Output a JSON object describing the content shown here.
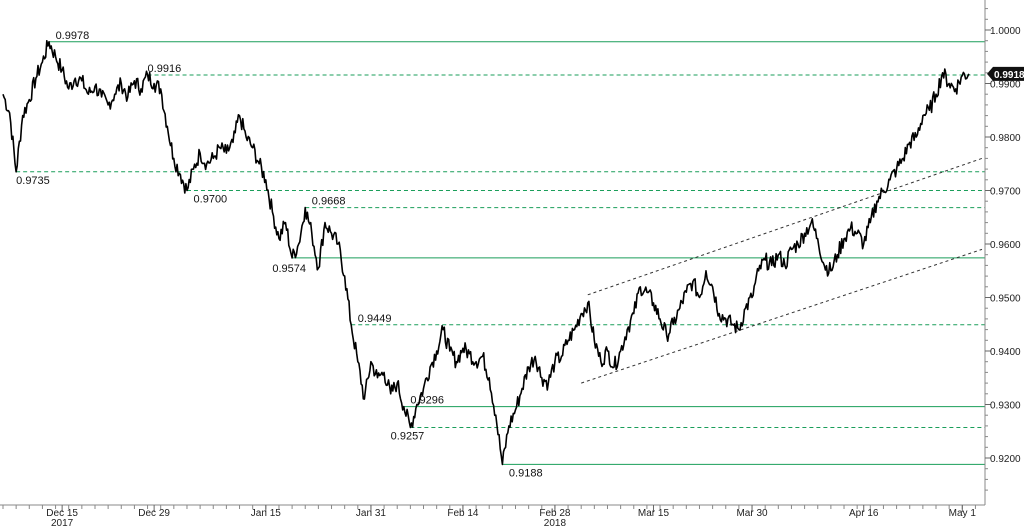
{
  "chart_data": {
    "type": "line",
    "title": "",
    "xlabel": "",
    "ylabel": "",
    "ylim": [
      0.914,
      1.007
    ],
    "y_ticks": [
      "1.0000",
      "0.9900",
      "0.9800",
      "0.9700",
      "0.9600",
      "0.9500",
      "0.9400",
      "0.9300",
      "0.9200"
    ],
    "y_tick_values": [
      1.0,
      0.99,
      0.98,
      0.97,
      0.96,
      0.95,
      0.94,
      0.93,
      0.92
    ],
    "x_tick_labels": [
      "Dec 15",
      "Dec 29",
      "Jan 15",
      "Jan 31",
      "Feb 14",
      "Feb 28",
      "Mar 15",
      "Mar 30",
      "Apr 16",
      "May 1"
    ],
    "x_tick_days": [
      9,
      23,
      40,
      56,
      70,
      84,
      99,
      114,
      131,
      146
    ],
    "year_labels": [
      {
        "label": "2017",
        "day": 9
      },
      {
        "label": "2018",
        "day": 84
      }
    ],
    "x_range_days": [
      0,
      149
    ],
    "last_value": "0.9918",
    "last_value_y": 0.9918,
    "line_color": "#000000",
    "level_line_color": "#1a9e5a",
    "series": [
      {
        "points": [
          [
            0,
            0.988
          ],
          [
            1,
            0.9845
          ],
          [
            2,
            0.9735
          ],
          [
            3,
            0.984
          ],
          [
            4,
            0.987
          ],
          [
            5,
            0.991
          ],
          [
            6,
            0.994
          ],
          [
            7,
            0.9978
          ],
          [
            8,
            0.995
          ],
          [
            9,
            0.9925
          ],
          [
            10,
            0.989
          ],
          [
            11,
            0.991
          ],
          [
            12,
            0.9905
          ],
          [
            13,
            0.988
          ],
          [
            14,
            0.9895
          ],
          [
            15,
            0.9875
          ],
          [
            16,
            0.986
          ],
          [
            17,
            0.988
          ],
          [
            18,
            0.99
          ],
          [
            19,
            0.9875
          ],
          [
            20,
            0.9905
          ],
          [
            21,
            0.989
          ],
          [
            22,
            0.9916
          ],
          [
            23,
            0.99
          ],
          [
            24,
            0.989
          ],
          [
            25,
            0.982
          ],
          [
            26,
            0.976
          ],
          [
            27,
            0.973
          ],
          [
            28,
            0.97
          ],
          [
            29,
            0.974
          ],
          [
            30,
            0.977
          ],
          [
            31,
            0.975
          ],
          [
            32,
            0.976
          ],
          [
            33,
            0.978
          ],
          [
            34,
            0.977
          ],
          [
            35,
            0.979
          ],
          [
            36,
            0.984
          ],
          [
            37,
            0.98
          ],
          [
            38,
            0.978
          ],
          [
            39,
            0.975
          ],
          [
            40,
            0.972
          ],
          [
            41,
            0.966
          ],
          [
            42,
            0.961
          ],
          [
            43,
            0.964
          ],
          [
            44,
            0.9574
          ],
          [
            45,
            0.96
          ],
          [
            46,
            0.9668
          ],
          [
            47,
            0.962
          ],
          [
            48,
            0.9555
          ],
          [
            49,
            0.964
          ],
          [
            50,
            0.962
          ],
          [
            51,
            0.96
          ],
          [
            52,
            0.954
          ],
          [
            53,
            0.9449
          ],
          [
            54,
            0.938
          ],
          [
            55,
            0.931
          ],
          [
            56,
            0.938
          ],
          [
            57,
            0.935
          ],
          [
            58,
            0.936
          ],
          [
            59,
            0.932
          ],
          [
            60,
            0.934
          ],
          [
            61,
            0.9296
          ],
          [
            62,
            0.9257
          ],
          [
            63,
            0.93
          ],
          [
            64,
            0.933
          ],
          [
            65,
            0.937
          ],
          [
            66,
            0.94
          ],
          [
            67,
            0.944
          ],
          [
            68,
            0.94
          ],
          [
            69,
            0.938
          ],
          [
            70,
            0.9405
          ],
          [
            71,
            0.9395
          ],
          [
            72,
            0.938
          ],
          [
            73,
            0.939
          ],
          [
            74,
            0.935
          ],
          [
            75,
            0.928
          ],
          [
            76,
            0.9188
          ],
          [
            77,
            0.926
          ],
          [
            78,
            0.929
          ],
          [
            79,
            0.933
          ],
          [
            80,
            0.937
          ],
          [
            81,
            0.939
          ],
          [
            82,
            0.935
          ],
          [
            83,
            0.934
          ],
          [
            84,
            0.938
          ],
          [
            85,
            0.939
          ],
          [
            86,
            0.942
          ],
          [
            87,
            0.944
          ],
          [
            88,
            0.947
          ],
          [
            89,
            0.949
          ],
          [
            90,
            0.942
          ],
          [
            91,
            0.938
          ],
          [
            92,
            0.94
          ],
          [
            93,
            0.937
          ],
          [
            94,
            0.94
          ],
          [
            95,
            0.944
          ],
          [
            96,
            0.947
          ],
          [
            97,
            0.952
          ],
          [
            98,
            0.951
          ],
          [
            99,
            0.949
          ],
          [
            100,
            0.946
          ],
          [
            101,
            0.943
          ],
          [
            102,
            0.945
          ],
          [
            103,
            0.948
          ],
          [
            104,
            0.951
          ],
          [
            105,
            0.953
          ],
          [
            106,
            0.95
          ],
          [
            107,
            0.955
          ],
          [
            108,
            0.952
          ],
          [
            109,
            0.947
          ],
          [
            110,
            0.946
          ],
          [
            111,
            0.945
          ],
          [
            112,
            0.944
          ],
          [
            113,
            0.948
          ],
          [
            114,
            0.95
          ],
          [
            115,
            0.955
          ],
          [
            116,
            0.957
          ],
          [
            117,
            0.956
          ],
          [
            118,
            0.958
          ],
          [
            119,
            0.956
          ],
          [
            120,
            0.959
          ],
          [
            121,
            0.96
          ],
          [
            122,
            0.962
          ],
          [
            123,
            0.964
          ],
          [
            124,
            0.961
          ],
          [
            125,
            0.956
          ],
          [
            126,
            0.955
          ],
          [
            127,
            0.958
          ],
          [
            128,
            0.961
          ],
          [
            129,
            0.963
          ],
          [
            130,
            0.962
          ],
          [
            131,
            0.96
          ],
          [
            132,
            0.964
          ],
          [
            133,
            0.968
          ],
          [
            134,
            0.97
          ],
          [
            135,
            0.972
          ],
          [
            136,
            0.974
          ],
          [
            137,
            0.976
          ],
          [
            138,
            0.979
          ],
          [
            139,
            0.98
          ],
          [
            140,
            0.984
          ],
          [
            141,
            0.985
          ],
          [
            142,
            0.988
          ],
          [
            143,
            0.992
          ],
          [
            144,
            0.99
          ],
          [
            145,
            0.989
          ],
          [
            146,
            0.9915
          ],
          [
            147,
            0.9918
          ]
        ]
      }
    ],
    "horizontal_levels": [
      {
        "value": 0.9978,
        "label": "0.9978",
        "style": "solid",
        "start_day": 7,
        "label_day": 8
      },
      {
        "value": 0.9916,
        "label": "0.9916",
        "style": "dashed",
        "start_day": 22,
        "label_day": 22
      },
      {
        "value": 0.9735,
        "label": "0.9735",
        "style": "dashed",
        "start_day": 2,
        "label_day": 2
      },
      {
        "value": 0.97,
        "label": "0.9700",
        "style": "dashed",
        "start_day": 28,
        "label_day": 29
      },
      {
        "value": 0.9668,
        "label": "0.9668",
        "style": "dashed",
        "start_day": 46,
        "label_day": 47
      },
      {
        "value": 0.9574,
        "label": "0.9574",
        "style": "solid",
        "start_day": 44,
        "label_day": 41
      },
      {
        "value": 0.9449,
        "label": "0.9449",
        "style": "dashed",
        "start_day": 53,
        "label_day": 54
      },
      {
        "value": 0.9296,
        "label": "0.9296",
        "style": "solid",
        "start_day": 61,
        "label_day": 62
      },
      {
        "value": 0.9257,
        "label": "0.9257",
        "style": "dashed",
        "start_day": 62,
        "label_day": 59
      },
      {
        "value": 0.9188,
        "label": "0.9188",
        "style": "solid",
        "start_day": 76,
        "label_day": 77
      }
    ],
    "channel_lines": [
      {
        "from": [
          89,
          0.9505
        ],
        "to": [
          149,
          0.976
        ]
      },
      {
        "from": [
          88,
          0.934
        ],
        "to": [
          149,
          0.959
        ]
      }
    ]
  }
}
